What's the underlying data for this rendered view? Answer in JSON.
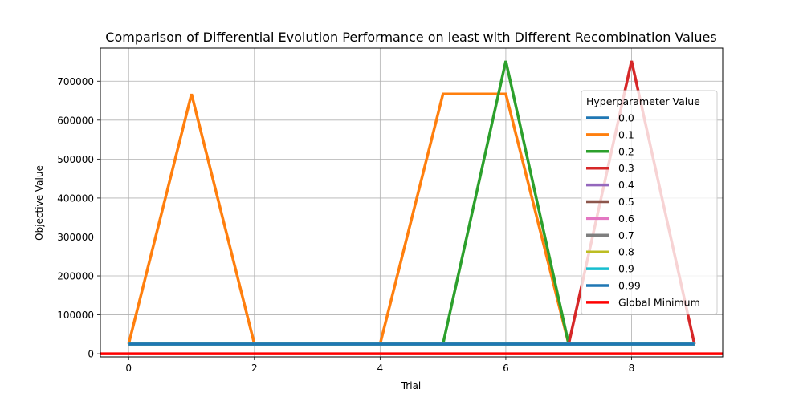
{
  "chart_data": {
    "type": "line",
    "title": "Comparison of Differential Evolution Performance on least with Different Recombination Values",
    "xlabel": "Trial",
    "ylabel": "Objective Value",
    "xlim": [
      -0.45,
      9.45
    ],
    "ylim": [
      -8000,
      785000
    ],
    "xticks": [
      0,
      2,
      4,
      6,
      8
    ],
    "yticks": [
      0,
      100000,
      200000,
      300000,
      400000,
      500000,
      600000,
      700000
    ],
    "grid": true,
    "legend": {
      "title": "Hyperparameter Value",
      "placement": "right"
    },
    "x": [
      0,
      1,
      2,
      3,
      4,
      5,
      6,
      7,
      8,
      9
    ],
    "series": [
      {
        "name": "0.0",
        "color": "#1f77b4",
        "values": [
          25000,
          25000,
          25000,
          25000,
          25000,
          25000,
          25000,
          25000,
          25000,
          25000
        ]
      },
      {
        "name": "0.1",
        "color": "#ff7f0e",
        "values": [
          25000,
          667000,
          25000,
          25000,
          25000,
          667000,
          667000,
          25000,
          25000,
          25000
        ]
      },
      {
        "name": "0.2",
        "color": "#2ca02c",
        "values": [
          25000,
          25000,
          25000,
          25000,
          25000,
          25000,
          752000,
          25000,
          25000,
          25000
        ]
      },
      {
        "name": "0.3",
        "color": "#d62728",
        "values": [
          25000,
          25000,
          25000,
          25000,
          25000,
          25000,
          25000,
          25000,
          752000,
          25000
        ]
      },
      {
        "name": "0.4",
        "color": "#9467bd",
        "values": [
          25000,
          25000,
          25000,
          25000,
          25000,
          25000,
          25000,
          25000,
          25000,
          25000
        ]
      },
      {
        "name": "0.5",
        "color": "#8c564b",
        "values": [
          25000,
          25000,
          25000,
          25000,
          25000,
          25000,
          25000,
          25000,
          25000,
          25000
        ]
      },
      {
        "name": "0.6",
        "color": "#e377c2",
        "values": [
          25000,
          25000,
          25000,
          25000,
          25000,
          25000,
          25000,
          25000,
          25000,
          25000
        ]
      },
      {
        "name": "0.7",
        "color": "#7f7f7f",
        "values": [
          25000,
          25000,
          25000,
          25000,
          25000,
          25000,
          25000,
          25000,
          25000,
          25000
        ]
      },
      {
        "name": "0.8",
        "color": "#bcbd22",
        "values": [
          25000,
          25000,
          25000,
          25000,
          25000,
          25000,
          25000,
          25000,
          25000,
          25000
        ]
      },
      {
        "name": "0.9",
        "color": "#17becf",
        "values": [
          25000,
          25000,
          25000,
          25000,
          25000,
          25000,
          25000,
          25000,
          25000,
          25000
        ]
      },
      {
        "name": "0.99",
        "color": "#1f77b4",
        "values": [
          25000,
          25000,
          25000,
          25000,
          25000,
          25000,
          25000,
          25000,
          25000,
          25000
        ]
      }
    ],
    "global_minimum": {
      "name": "Global Minimum",
      "color": "#ff0000",
      "value": 0
    }
  }
}
